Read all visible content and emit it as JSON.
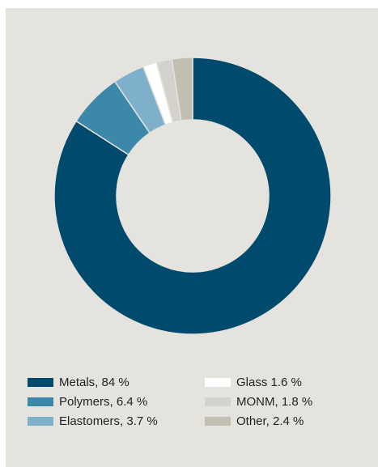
{
  "chart_data": {
    "type": "pie",
    "variant": "donut",
    "title": "",
    "grid": false,
    "legend_placement": "bottom",
    "start": "top",
    "direction": "clockwise",
    "slices": [
      {
        "name": "Metals",
        "value": 84,
        "label": "Metals, 84 %",
        "color": "#004a6d"
      },
      {
        "name": "Polymers",
        "value": 6.4,
        "label": "Polymers, 6.4 %",
        "color": "#3b88a8"
      },
      {
        "name": "Elastomers",
        "value": 3.7,
        "label": "Elastomers, 3.7 %",
        "color": "#7fb0cb"
      },
      {
        "name": "Glass",
        "value": 1.6,
        "label": "Glass 1.6 %",
        "color": "#ffffff"
      },
      {
        "name": "MONM",
        "value": 1.8,
        "label": "MONM, 1.8 %",
        "color": "#d4d2cc"
      },
      {
        "name": "Other",
        "value": 2.4,
        "label": "Other, 2.4 %",
        "color": "#c2beb2"
      }
    ]
  },
  "colors": {
    "panel_background": "#e5e3de",
    "page_background": "#ffffff"
  }
}
